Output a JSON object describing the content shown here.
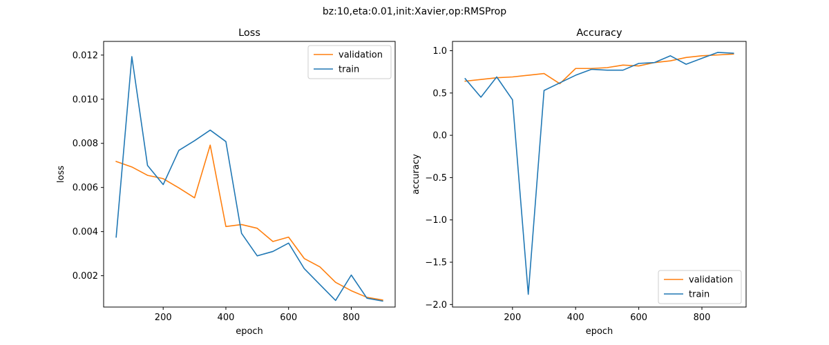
{
  "figure": {
    "suptitle": "bz:10,eta:0.01,init:Xavier,op:RMSProp"
  },
  "chart_data": [
    {
      "type": "line",
      "title": "Loss",
      "xlabel": "epoch",
      "ylabel": "loss",
      "x": [
        50,
        100,
        150,
        200,
        250,
        300,
        350,
        400,
        450,
        500,
        550,
        600,
        650,
        700,
        750,
        800,
        850,
        900
      ],
      "xlim": [
        10,
        940
      ],
      "ylim": [
        0.00058,
        0.01262
      ],
      "xticks": [
        200,
        400,
        600,
        800
      ],
      "xtick_labels": [
        "200",
        "400",
        "600",
        "800"
      ],
      "yticks": [
        0.002,
        0.004,
        0.006,
        0.008,
        0.01,
        0.012
      ],
      "ytick_labels": [
        "0.002",
        "0.004",
        "0.006",
        "0.008",
        "0.010",
        "0.012"
      ],
      "legend_position": "upper right",
      "series": [
        {
          "name": "validation",
          "color": "#ff7f0e",
          "values": [
            0.00718,
            0.00693,
            0.00655,
            0.0064,
            0.00598,
            0.00553,
            0.00792,
            0.00423,
            0.00432,
            0.00415,
            0.00355,
            0.00375,
            0.00278,
            0.0024,
            0.0017,
            0.00132,
            0.00102,
            0.0009
          ]
        },
        {
          "name": "train",
          "color": "#1f77b4",
          "values": [
            0.00375,
            0.01193,
            0.007,
            0.00613,
            0.00768,
            0.00812,
            0.0086,
            0.00808,
            0.00392,
            0.0029,
            0.0031,
            0.00348,
            0.00232,
            0.0016,
            0.00088,
            0.00203,
            0.00098,
            0.00085
          ]
        }
      ]
    },
    {
      "type": "line",
      "title": "Accuracy",
      "xlabel": "epoch",
      "ylabel": "accuracy",
      "x": [
        50,
        100,
        150,
        200,
        250,
        300,
        350,
        400,
        450,
        500,
        550,
        600,
        650,
        700,
        750,
        800,
        850,
        900
      ],
      "xlim": [
        10,
        940
      ],
      "ylim": [
        -2.03,
        1.11
      ],
      "xticks": [
        200,
        400,
        600,
        800
      ],
      "xtick_labels": [
        "200",
        "400",
        "600",
        "800"
      ],
      "yticks": [
        -2.0,
        -1.5,
        -1.0,
        -0.5,
        0.0,
        0.5,
        1.0
      ],
      "ytick_labels": [
        "−2.0",
        "−1.5",
        "−1.0",
        "−0.5",
        "0.0",
        "0.5",
        "1.0"
      ],
      "legend_position": "lower right",
      "series": [
        {
          "name": "validation",
          "color": "#ff7f0e",
          "values": [
            0.64,
            0.66,
            0.68,
            0.69,
            0.71,
            0.73,
            0.61,
            0.79,
            0.79,
            0.8,
            0.83,
            0.82,
            0.86,
            0.88,
            0.92,
            0.94,
            0.95,
            0.96
          ]
        },
        {
          "name": "train",
          "color": "#1f77b4",
          "values": [
            0.67,
            0.45,
            0.69,
            0.42,
            -1.88,
            0.53,
            0.62,
            0.71,
            0.78,
            0.77,
            0.77,
            0.85,
            0.86,
            0.94,
            0.84,
            0.91,
            0.98,
            0.97
          ]
        }
      ]
    }
  ]
}
